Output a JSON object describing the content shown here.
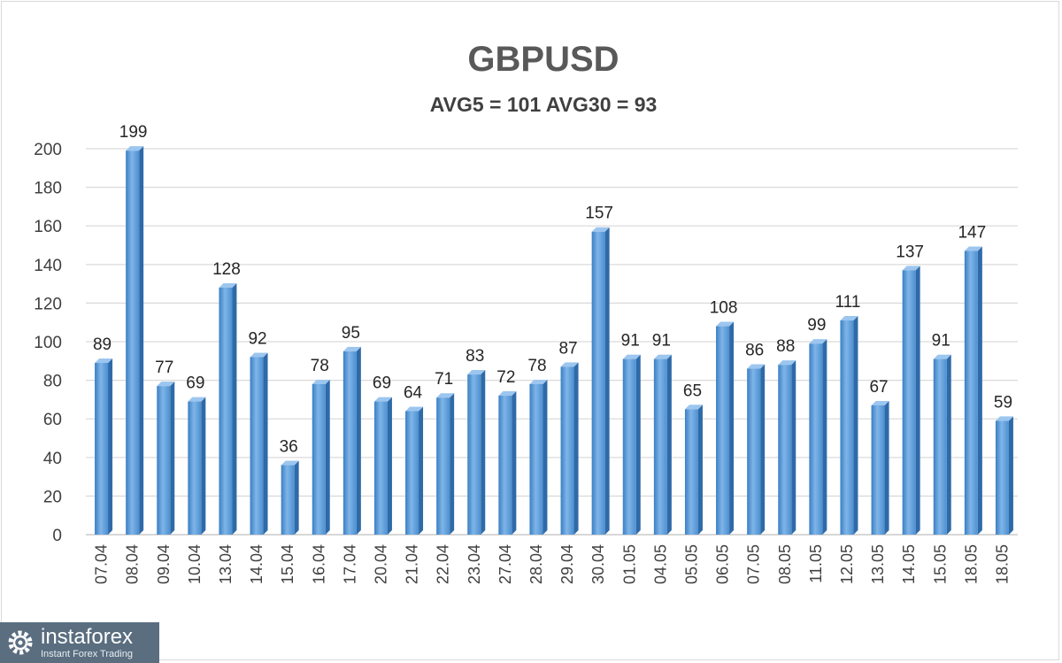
{
  "chart_data": {
    "type": "bar",
    "title": "GBPUSD",
    "subtitle": "AVG5 = 101 AVG30 = 93",
    "xlabel": "",
    "ylabel": "",
    "ylim": [
      0,
      200
    ],
    "yticks": [
      0,
      20,
      40,
      60,
      80,
      100,
      120,
      140,
      160,
      180,
      200
    ],
    "grid": true,
    "bar_color": "#5b9bd5",
    "categories": [
      "07.04",
      "08.04",
      "09.04",
      "10.04",
      "13.04",
      "14.04",
      "15.04",
      "16.04",
      "17.04",
      "20.04",
      "21.04",
      "22.04",
      "23.04",
      "27.04",
      "28.04",
      "29.04",
      "30.04",
      "01.05",
      "04.05",
      "05.05",
      "06.05",
      "07.05",
      "08.05",
      "11.05",
      "12.05",
      "13.05",
      "14.05",
      "15.05",
      "18.05",
      "18.05"
    ],
    "values": [
      89,
      199,
      77,
      69,
      128,
      92,
      36,
      78,
      95,
      69,
      64,
      71,
      83,
      72,
      78,
      87,
      157,
      91,
      91,
      65,
      108,
      86,
      88,
      99,
      111,
      67,
      137,
      91,
      147,
      59
    ]
  },
  "branding": {
    "name": "instaforex",
    "tagline": "Instant Forex Trading",
    "color": "#5a6e80",
    "icon": "gear-logo-icon"
  }
}
